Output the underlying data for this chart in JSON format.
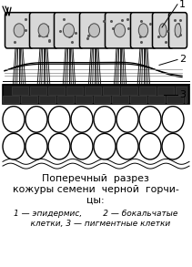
{
  "title_line1": "Поперечный  разрез",
  "title_line2": "кожуры семени  черной  горчи-",
  "title_line3": "цы:",
  "caption_line1": "1 — эпидермис,        2 — бокальчатые",
  "caption_line2": "    клетки, 3 — пигментные клетки",
  "label1": "1",
  "label2": "2",
  "label3": "3",
  "bg_color": "#ffffff",
  "figure_width": 2.11,
  "figure_height": 2.93,
  "dpi": 100
}
